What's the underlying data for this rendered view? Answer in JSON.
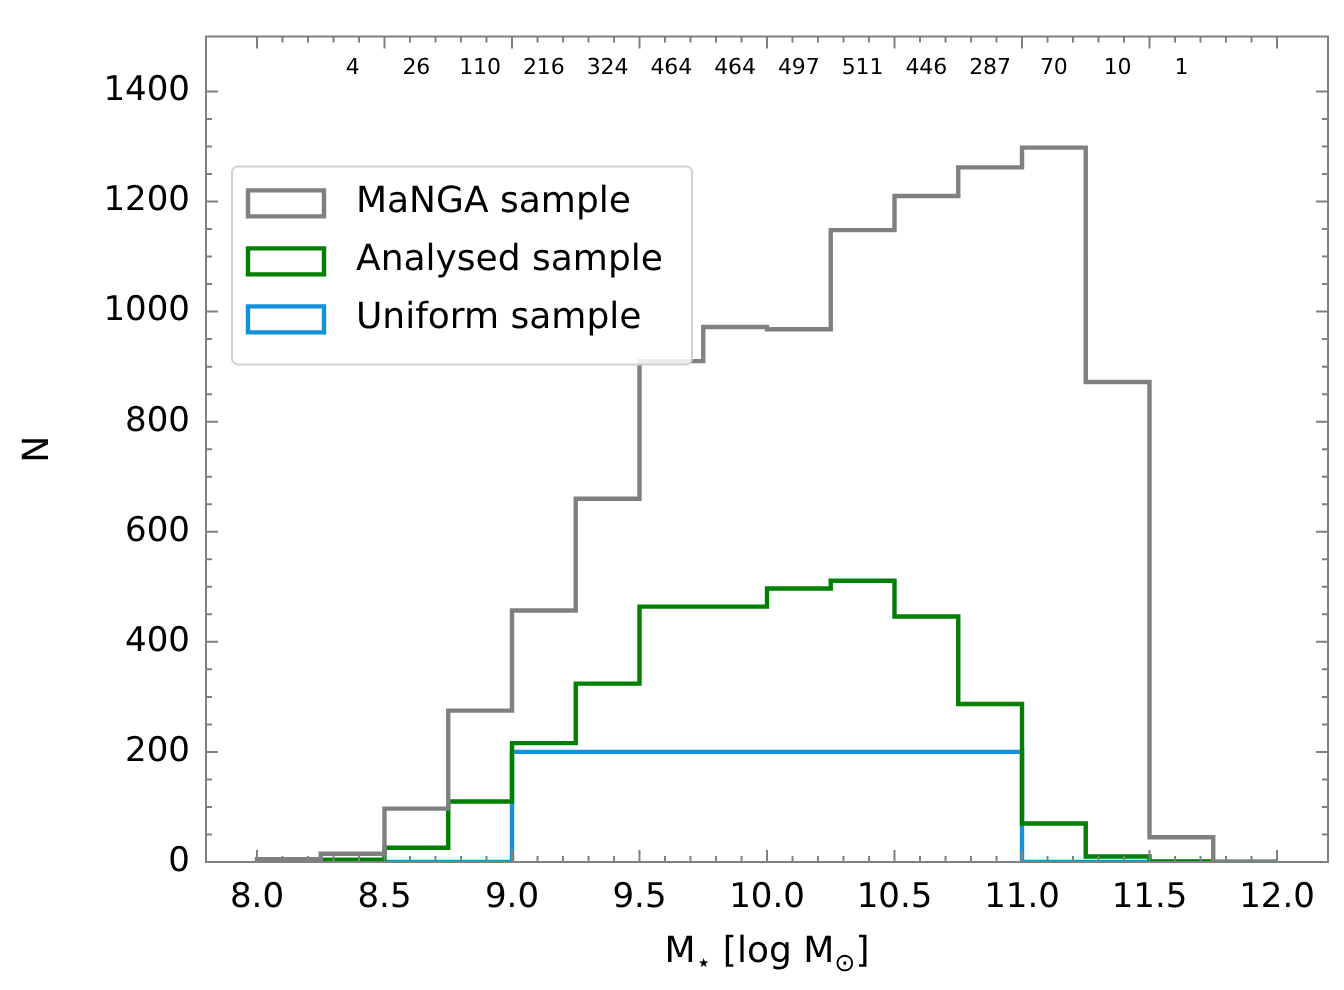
{
  "chart_data": {
    "type": "histogram",
    "xlabel": "M$_{⋆}$ [log M$_{⊙}$]",
    "ylabel": "N",
    "bins": [
      8.0,
      8.25,
      8.5,
      8.75,
      9.0,
      9.25,
      9.5,
      9.75,
      10.0,
      10.25,
      10.5,
      10.75,
      11.0,
      11.25,
      11.5,
      11.75,
      12.0
    ],
    "series": [
      {
        "name": "MaNGA sample",
        "color": "#808080",
        "values": [
          5,
          15,
          97,
          275,
          457,
          660,
          910,
          972,
          968,
          1148,
          1210,
          1262,
          1298,
          872,
          45,
          0
        ]
      },
      {
        "name": "Analysed sample",
        "color": "#008000",
        "values": [
          0,
          4,
          26,
          110,
          216,
          324,
          464,
          464,
          497,
          511,
          446,
          287,
          70,
          10,
          1,
          0
        ]
      },
      {
        "name": "Uniform sample",
        "color": "#1093d8",
        "values": [
          0,
          0,
          0,
          0,
          200,
          200,
          200,
          200,
          200,
          200,
          200,
          200,
          0,
          0,
          0,
          0
        ]
      }
    ],
    "xlim": [
      7.8,
      12.2
    ],
    "xticks": [
      {
        "value": 8,
        "label": "8.0"
      },
      {
        "value": 8.5,
        "label": "8.5"
      },
      {
        "value": 9,
        "label": "9.0"
      },
      {
        "value": 9.5,
        "label": "9.5"
      },
      {
        "value": 10,
        "label": "10.0"
      },
      {
        "value": 10.5,
        "label": "10.5"
      },
      {
        "value": 11,
        "label": "11.0"
      },
      {
        "value": 11.5,
        "label": "11.5"
      },
      {
        "value": 12,
        "label": "12.0"
      }
    ],
    "ylim": [
      0,
      1500
    ],
    "yticks": [
      0,
      200,
      400,
      600,
      800,
      1000,
      1200,
      1400
    ],
    "grid": false,
    "legend": "top left",
    "annotations": [
      "4",
      "26",
      "110",
      "216",
      "324",
      "464",
      "464",
      "497",
      "511",
      "446",
      "287",
      "70",
      "10",
      "1"
    ]
  }
}
